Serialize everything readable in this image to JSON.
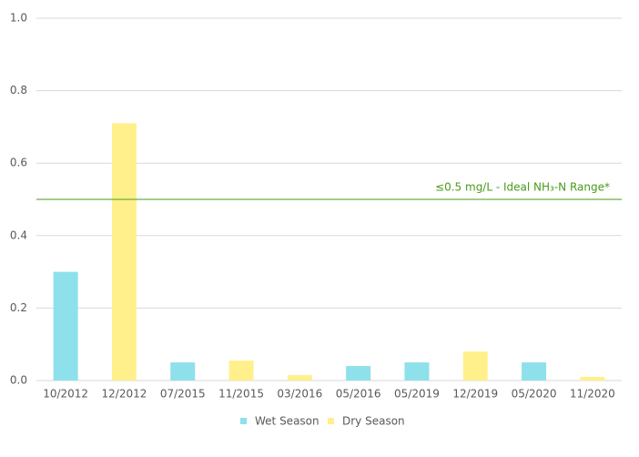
{
  "chart_data": {
    "type": "bar",
    "categories": [
      "10/2012",
      "12/2012",
      "07/2015",
      "11/2015",
      "03/2016",
      "05/2016",
      "05/2019",
      "12/2019",
      "05/2020",
      "11/2020"
    ],
    "series": [
      {
        "name": "Wet Season",
        "color": "#8ee0ea",
        "values": [
          0.3,
          null,
          0.05,
          null,
          null,
          0.04,
          0.05,
          null,
          0.05,
          null
        ]
      },
      {
        "name": "Dry Season",
        "color": "#fff08c",
        "values": [
          null,
          0.71,
          null,
          0.055,
          0.015,
          null,
          null,
          0.08,
          null,
          0.01
        ]
      }
    ],
    "ylim": [
      0,
      1
    ],
    "yticks": [
      {
        "value": 0,
        "label": "0.0"
      },
      0.2,
      0.4,
      0.6,
      0.8,
      {
        "value": 1,
        "label": "1.0"
      }
    ],
    "grid": true,
    "reference_line": {
      "value": 0.5,
      "label": "≤0.5 mg/L - Ideal NH₃-N Range*",
      "color": "#4a9a1a"
    },
    "legend": "bottom"
  }
}
